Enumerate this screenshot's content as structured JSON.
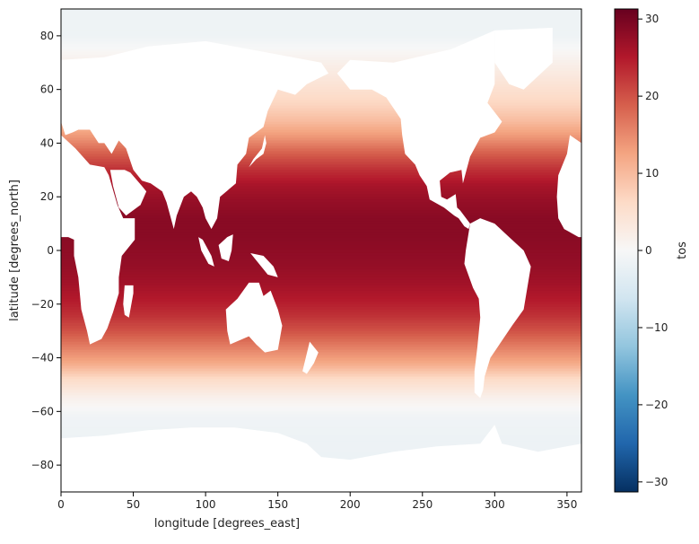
{
  "chart_data": {
    "type": "heatmap",
    "title": "",
    "xlabel": "longitude [degrees_east]",
    "ylabel": "latitude [degrees_north]",
    "xlim": [
      0,
      360
    ],
    "ylim": [
      -90,
      90
    ],
    "x_ticks": [
      0,
      50,
      100,
      150,
      200,
      250,
      300,
      350
    ],
    "y_ticks": [
      -80,
      -60,
      -40,
      -20,
      0,
      20,
      40,
      60,
      80
    ],
    "colorbar": {
      "label": "tos",
      "range": [
        -31.3,
        31.3
      ],
      "ticks": [
        -30,
        -20,
        -10,
        0,
        10,
        20,
        30
      ],
      "colormap": "RdBu_r",
      "colors": [
        "#053061",
        "#2166ac",
        "#4393c3",
        "#92c5de",
        "#d1e5f0",
        "#f7f7f7",
        "#fddbc7",
        "#f4a582",
        "#d6604d",
        "#b2182b",
        "#67001f"
      ]
    },
    "land_color": "#ffffff",
    "zonal_profile": {
      "latitude": [
        -78,
        -70,
        -62,
        -55,
        -48,
        -42,
        -36,
        -30,
        -24,
        -18,
        -12,
        -6,
        0,
        6,
        12,
        18,
        24,
        30,
        36,
        42,
        48,
        54,
        60,
        66,
        72,
        80
      ],
      "tos_mean": [
        -1.8,
        -1.6,
        -1.2,
        1.5,
        6,
        12,
        16,
        20,
        23,
        25,
        26.5,
        27.5,
        28,
        28.5,
        28.5,
        27.5,
        26,
        23,
        19,
        14,
        10,
        7,
        5,
        3,
        1,
        -1.5
      ]
    }
  }
}
